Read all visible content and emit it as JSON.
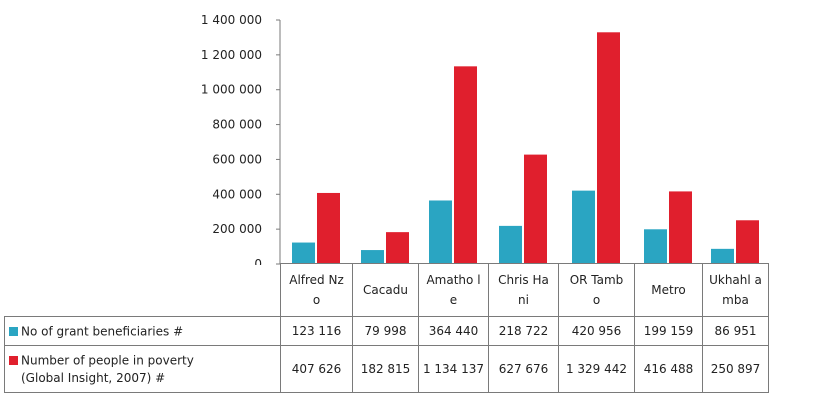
{
  "colors": {
    "s1": "#2aa5c2",
    "s2": "#e01f2d",
    "axis": "#7a7a7a"
  },
  "table": {
    "series1_label": "No of grant  beneficiaries  #",
    "series2_label_line1": "Number of people in  poverty",
    "series2_label_line2": "(Global  Insight, 2007)  #"
  },
  "chart_data": {
    "type": "bar",
    "categories": [
      "Alfred Nzo",
      "Cacadu",
      "Amathole",
      "Chris Hani",
      "OR Tambo",
      "Metro",
      "Ukhahlamba"
    ],
    "category_display": [
      "Alfred Nzo",
      "Cacadu",
      "Amatho le",
      "Chris Hani",
      "OR Tambo",
      "Metro",
      "Ukhahl amba"
    ],
    "series": [
      {
        "name": "No of grant  beneficiaries  #",
        "color": "#2aa5c2",
        "values": [
          123116,
          79998,
          364440,
          218722,
          420956,
          199159,
          86951
        ],
        "display": [
          "123 116",
          "79 998",
          "364 440",
          "218 722",
          "420 956",
          "199 159",
          "86 951"
        ]
      },
      {
        "name": "Number of people in  poverty (Global  Insight, 2007)  #",
        "color": "#e01f2d",
        "values": [
          407626,
          182815,
          1134137,
          627676,
          1329442,
          416488,
          250897
        ],
        "display": [
          "407 626",
          "182 815",
          "1 134 137",
          "627 676",
          "1 329 442",
          "416 488",
          "250 897"
        ]
      }
    ],
    "yticks": [
      0,
      200000,
      400000,
      600000,
      800000,
      1000000,
      1200000,
      1400000
    ],
    "ytick_labels": [
      "0",
      "200 000",
      "400 000",
      "600 000",
      "800 000",
      "1 000 000",
      "1 200 000",
      "1 400 000"
    ],
    "ylim": [
      0,
      1400000
    ],
    "grid": false,
    "legend": "data-table",
    "title": "",
    "xlabel": "",
    "ylabel": ""
  }
}
